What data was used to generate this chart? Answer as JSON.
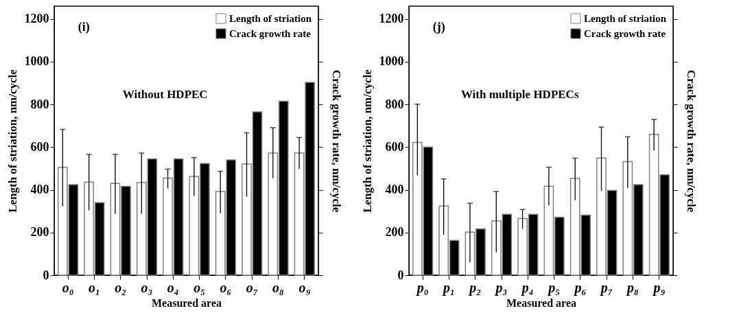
{
  "chart_data": [
    {
      "type": "bar",
      "xlabel": "Measured area",
      "ylabel": "Length of striation, nm/cycle",
      "y2label": "Crack growth rate, nm/cycle",
      "annotations": [
        "(i)",
        "Without HDPEC"
      ],
      "categories": [
        "o₀",
        "o₁",
        "o₂",
        "o₃",
        "o₄",
        "o₅",
        "o₆",
        "o₇",
        "o₈",
        "o₉"
      ],
      "series": [
        {
          "name": "Length of striation",
          "color": "#ffffff",
          "values": [
            505,
            436,
            430,
            434,
            455,
            463,
            392,
            521,
            572,
            572
          ],
          "errors": [
            [
              323,
              683
            ],
            [
              304,
              566
            ],
            [
              288,
              566
            ],
            [
              288,
              572
            ],
            [
              406,
              497
            ],
            [
              371,
              551
            ],
            [
              290,
              487
            ],
            [
              368,
              667
            ],
            [
              454,
              691
            ],
            [
              498,
              645
            ]
          ]
        },
        {
          "name": "Crack growth rate",
          "color": "#000000",
          "values": [
            424,
            340,
            416,
            545,
            545,
            523,
            540,
            765,
            815,
            903
          ]
        }
      ],
      "ylim": [
        0,
        1260
      ],
      "yticks": [
        0,
        200,
        400,
        600,
        800,
        1000,
        1200
      ],
      "legend": "top right",
      "grid": false
    },
    {
      "type": "bar",
      "xlabel": "Measured area",
      "ylabel": "Length of striation, nm/cycle",
      "y2label": "Crack growth rate, nm/cycle",
      "annotations": [
        "(j)",
        "With multiple HDPECs"
      ],
      "categories": [
        "p₀",
        "p₁",
        "p₂",
        "p₃",
        "p₄",
        "p₅",
        "p₆",
        "p₇",
        "p₈",
        "p₉"
      ],
      "series": [
        {
          "name": "Length of striation",
          "color": "#ffffff",
          "values": [
            622,
            324,
            202,
            254,
            265,
            417,
            453,
            549,
            532,
            660
          ],
          "errors": [
            [
              468,
              801
            ],
            [
              190,
              451
            ],
            [
              60,
              337
            ],
            [
              107,
              392
            ],
            [
              217,
              308
            ],
            [
              326,
              506
            ],
            [
              351,
              548
            ],
            [
              395,
              694
            ],
            [
              410,
              648
            ],
            [
              584,
              729
            ]
          ]
        },
        {
          "name": "Crack growth rate",
          "color": "#000000",
          "values": [
            600,
            163,
            217,
            285,
            285,
            272,
            281,
            397,
            424,
            470
          ]
        }
      ],
      "ylim": [
        0,
        1260
      ],
      "yticks": [
        0,
        200,
        400,
        600,
        800,
        1000,
        1200
      ],
      "legend": "top right",
      "grid": false
    }
  ]
}
